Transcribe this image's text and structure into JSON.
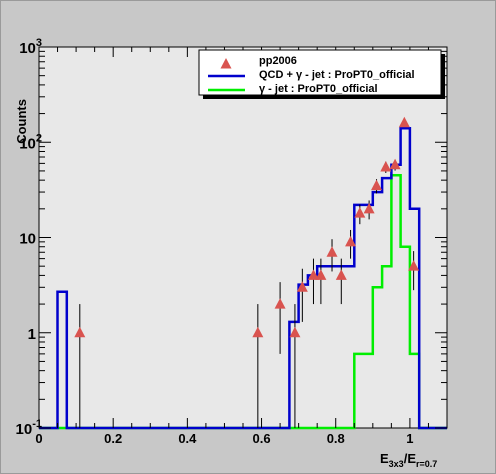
{
  "chart_data": {
    "type": "histogram",
    "xlabel": "E3x3/Er=0.7",
    "xlabel_parts": {
      "base1": "E",
      "sub1": "3x3",
      "slash": "/E",
      "sub2": "r=0.7"
    },
    "ylabel": "Counts",
    "ylog": true,
    "xlim": [
      0.0,
      1.1
    ],
    "ylim": [
      0.1,
      1000
    ],
    "x_ticks": [
      "0",
      "0.2",
      "0.4",
      "0.6",
      "0.8",
      "1"
    ],
    "y_ticks": [
      {
        "base": "10",
        "exp": "-1",
        "value": 0.1
      },
      {
        "base": "1",
        "exp": "",
        "value": 1
      },
      {
        "base": "10",
        "exp": "",
        "value": 10
      },
      {
        "base": "10",
        "exp": "2",
        "value": 100
      },
      {
        "base": "10",
        "exp": "3",
        "value": 1000
      }
    ],
    "legend": {
      "placement": "top-right",
      "entries": [
        {
          "label": "pp2006",
          "kind": "marker",
          "color": "#d9534f"
        },
        {
          "label": "QCD + γ - jet : ProPT0_official",
          "kind": "line",
          "color": "#0000cc"
        },
        {
          "label": "γ - jet : ProPT0_official",
          "kind": "line",
          "color": "#00ee00"
        }
      ]
    },
    "series": [
      {
        "name": "pp2006",
        "kind": "points",
        "color": "#d9534f",
        "points": [
          {
            "x": 0.11,
            "y": 1.0,
            "err_lo": 0.1,
            "err_hi": 2.0
          },
          {
            "x": 0.59,
            "y": 1.0,
            "err_lo": 0.1,
            "err_hi": 2.0
          },
          {
            "x": 0.65,
            "y": 2.0,
            "err_lo": 0.6,
            "err_hi": 3.4
          },
          {
            "x": 0.69,
            "y": 1.0,
            "err_lo": 0.1,
            "err_hi": 2.0
          },
          {
            "x": 0.71,
            "y": 3.0,
            "err_lo": 1.3,
            "err_hi": 4.7
          },
          {
            "x": 0.74,
            "y": 4.0,
            "err_lo": 2.0,
            "err_hi": 6.0
          },
          {
            "x": 0.76,
            "y": 4.0,
            "err_lo": 2.0,
            "err_hi": 6.0
          },
          {
            "x": 0.79,
            "y": 7.0,
            "err_lo": 4.4,
            "err_hi": 9.6
          },
          {
            "x": 0.815,
            "y": 4.0,
            "err_lo": 2.0,
            "err_hi": 6.0
          },
          {
            "x": 0.84,
            "y": 9.0,
            "err_lo": 6.0,
            "err_hi": 12.0
          },
          {
            "x": 0.865,
            "y": 18.0,
            "err_lo": 13.8,
            "err_hi": 22.2
          },
          {
            "x": 0.89,
            "y": 20.0,
            "err_lo": 15.5,
            "err_hi": 24.5
          },
          {
            "x": 0.91,
            "y": 35.0,
            "err_lo": 29.0,
            "err_hi": 41.0
          },
          {
            "x": 0.935,
            "y": 55.0,
            "err_lo": 47.6,
            "err_hi": 62.4
          },
          {
            "x": 0.96,
            "y": 58.0,
            "err_lo": 50.4,
            "err_hi": 65.6
          },
          {
            "x": 0.985,
            "y": 160.0,
            "err_lo": 147.0,
            "err_hi": 173.0
          },
          {
            "x": 1.01,
            "y": 5.0,
            "err_lo": 2.8,
            "err_hi": 7.2
          }
        ]
      },
      {
        "name": "QCD + γ - jet : ProPT0_official",
        "kind": "step",
        "color": "#0000cc",
        "bins": [
          {
            "x0": 0.0,
            "x1": 0.05,
            "y": 0.1
          },
          {
            "x0": 0.05,
            "x1": 0.075,
            "y": 2.7
          },
          {
            "x0": 0.075,
            "x1": 0.675,
            "y": 0.1
          },
          {
            "x0": 0.675,
            "x1": 0.7,
            "y": 1.3
          },
          {
            "x0": 0.7,
            "x1": 0.725,
            "y": 3.2
          },
          {
            "x0": 0.725,
            "x1": 0.75,
            "y": 4.0
          },
          {
            "x0": 0.75,
            "x1": 0.775,
            "y": 5.0
          },
          {
            "x0": 0.775,
            "x1": 0.8,
            "y": 5.0
          },
          {
            "x0": 0.8,
            "x1": 0.825,
            "y": 5.0
          },
          {
            "x0": 0.825,
            "x1": 0.85,
            "y": 5.0
          },
          {
            "x0": 0.85,
            "x1": 0.875,
            "y": 22.0
          },
          {
            "x0": 0.875,
            "x1": 0.9,
            "y": 22.0
          },
          {
            "x0": 0.9,
            "x1": 0.925,
            "y": 30.0
          },
          {
            "x0": 0.925,
            "x1": 0.95,
            "y": 42.0
          },
          {
            "x0": 0.95,
            "x1": 0.975,
            "y": 58.0
          },
          {
            "x0": 0.975,
            "x1": 1.0,
            "y": 140.0
          },
          {
            "x0": 1.0,
            "x1": 1.025,
            "y": 20.0
          },
          {
            "x0": 1.025,
            "x1": 1.1,
            "y": 0.1
          }
        ]
      },
      {
        "name": "γ - jet : ProPT0_official",
        "kind": "step",
        "color": "#00ee00",
        "bins": [
          {
            "x0": 0.0,
            "x1": 0.85,
            "y": 0.1
          },
          {
            "x0": 0.85,
            "x1": 0.9,
            "y": 0.6
          },
          {
            "x0": 0.9,
            "x1": 0.925,
            "y": 3.0
          },
          {
            "x0": 0.925,
            "x1": 0.95,
            "y": 5.0
          },
          {
            "x0": 0.95,
            "x1": 0.975,
            "y": 45.0
          },
          {
            "x0": 0.975,
            "x1": 1.0,
            "y": 8.0
          },
          {
            "x0": 1.0,
            "x1": 1.025,
            "y": 0.6
          },
          {
            "x0": 1.025,
            "x1": 1.1,
            "y": 0.1
          }
        ]
      }
    ]
  }
}
